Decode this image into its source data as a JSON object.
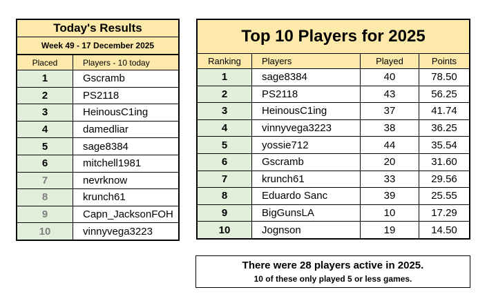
{
  "today": {
    "title": "Today's Results",
    "subtitle": "Week 49 - 17 December 2025",
    "col_placed": "Placed",
    "col_players": "Players - 10 today",
    "rows": [
      {
        "placed": "1",
        "player": "Gscramb"
      },
      {
        "placed": "2",
        "player": "PS2118"
      },
      {
        "placed": "3",
        "player": "HeinousC1ing"
      },
      {
        "placed": "4",
        "player": "damedliar"
      },
      {
        "placed": "5",
        "player": "sage8384"
      },
      {
        "placed": "6",
        "player": "mitchell1981"
      },
      {
        "placed": "7",
        "player": "nevrknow"
      },
      {
        "placed": "8",
        "player": "krunch61"
      },
      {
        "placed": "9",
        "player": "Capn_JacksonFOH"
      },
      {
        "placed": "10",
        "player": "vinnyvega3223"
      }
    ]
  },
  "top10": {
    "title": "Top 10 Players for 2025",
    "col_ranking": "Ranking",
    "col_players": "Players",
    "col_played": "Played",
    "col_points": "Points",
    "rows": [
      {
        "rank": "1",
        "player": "sage8384",
        "played": "40",
        "points": "78.50"
      },
      {
        "rank": "2",
        "player": "PS2118",
        "played": "43",
        "points": "56.25"
      },
      {
        "rank": "3",
        "player": "HeinousC1ing",
        "played": "37",
        "points": "41.74"
      },
      {
        "rank": "4",
        "player": "vinnyvega3223",
        "played": "38",
        "points": "36.25"
      },
      {
        "rank": "5",
        "player": "yossie712",
        "played": "44",
        "points": "35.54"
      },
      {
        "rank": "6",
        "player": "Gscramb",
        "played": "20",
        "points": "31.60"
      },
      {
        "rank": "7",
        "player": "krunch61",
        "played": "33",
        "points": "29.56"
      },
      {
        "rank": "8",
        "player": "Eduardo Sanc",
        "played": "39",
        "points": "25.55"
      },
      {
        "rank": "9",
        "player": "BigGunsLA",
        "played": "10",
        "points": "17.29"
      },
      {
        "rank": "10",
        "player": "Jognson",
        "played": "19",
        "points": "14.50"
      }
    ]
  },
  "summary": {
    "line1": "There were 28 players active in 2025.",
    "line2": "10 of these only played 5 or less games."
  },
  "colors": {
    "header_bg": "#fde9a9",
    "rank_bg": "#e2efda",
    "dim_rank_text": "#808080"
  }
}
